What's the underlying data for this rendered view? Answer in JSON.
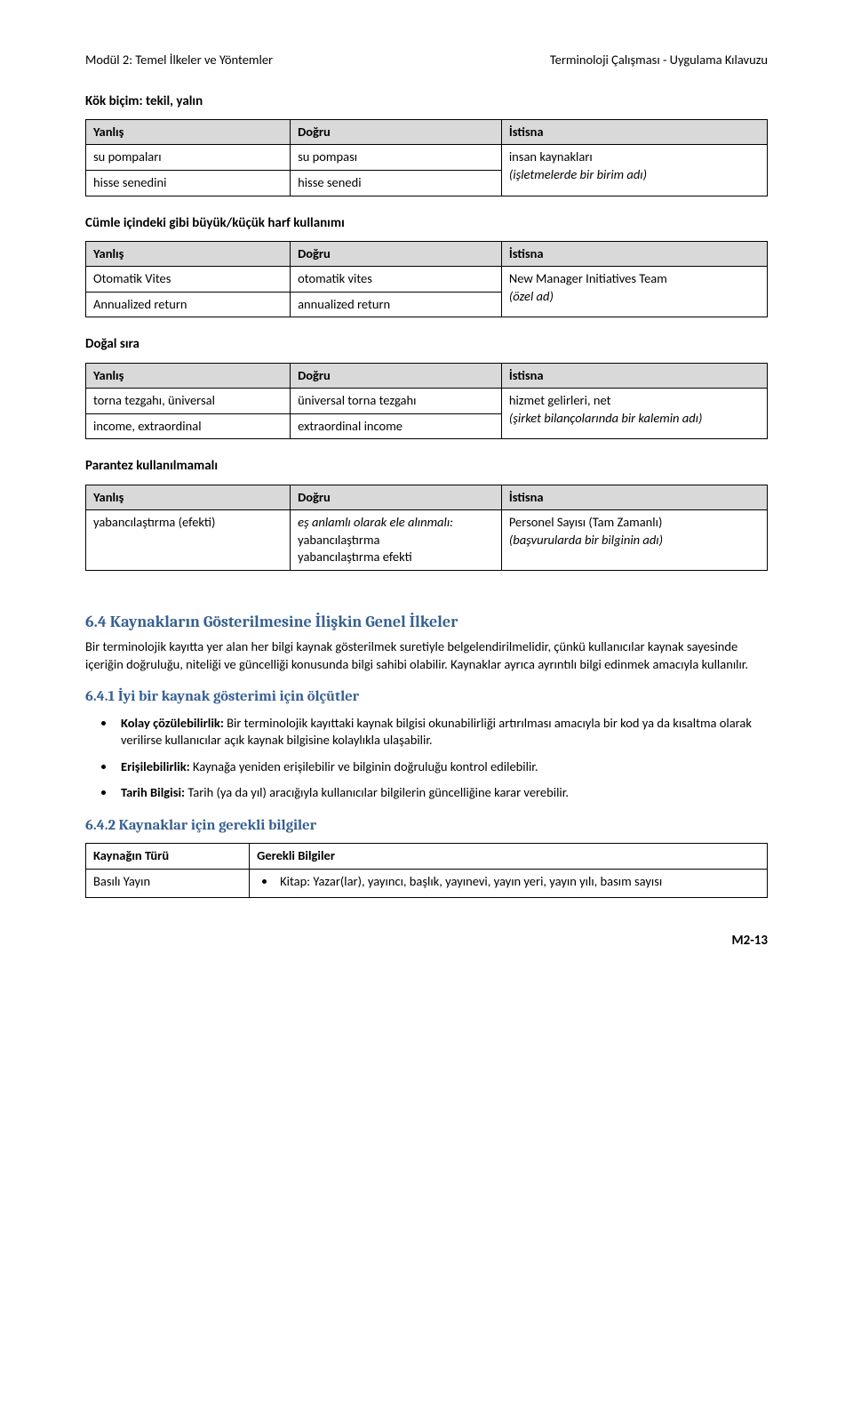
{
  "header": {
    "left": "Modül 2: Temel İlkeler ve Yöntemler",
    "right": "Terminoloji Çalışması - Uygulama Kılavuzu"
  },
  "tables": {
    "headers": {
      "wrong": "Yanlış",
      "right": "Doğru",
      "exception": "İstisna"
    },
    "t1": {
      "title": "Kök biçim: tekil, yalın",
      "r1a": "su pompaları",
      "r1b": "su pompası",
      "r2a": "hisse senedini",
      "r2b": "hisse senedi",
      "exc_l1": "insan kaynakları",
      "exc_l2": "(işletmelerde bir birim adı)"
    },
    "t2": {
      "title": "Cümle içindeki gibi büyük/küçük harf kullanımı",
      "r1a": "Otomatik Vites",
      "r1b": "otomatik vites",
      "r2a": "Annualized return",
      "r2b": "annualized return",
      "exc_l1": "New Manager Initiatives Team",
      "exc_l2": "(özel ad)"
    },
    "t3": {
      "title": "Doğal sıra",
      "r1a": "torna tezgahı, üniversal",
      "r1b": "üniversal torna tezgahı",
      "r2a": "income,  extraordinal",
      "r2b": "extraordinal income",
      "exc_l1": "hizmet gelirleri, net",
      "exc_l2": "(şirket bilançolarında bir kalemin adı)"
    },
    "t4": {
      "title": "Parantez kullanılmamalı",
      "r1a": "yabancılaştırma (efekti)",
      "r1b_l1": "eş anlamlı olarak ele alınmalı:",
      "r1b_l2": "yabancılaştırma",
      "r1b_l3": "yabancılaştırma efekti",
      "exc_l1": "Personel Sayısı (Tam Zamanlı)",
      "exc_l2": "(başvurularda bir bilginin adı)"
    }
  },
  "section64": {
    "heading": "6.4 Kaynakların Gösterilmesine İlişkin Genel İlkeler",
    "p1": "Bir terminolojik kayıtta yer alan her bilgi kaynak gösterilmek suretiyle belgelendirilmelidir, çünkü kullanıcılar kaynak sayesinde içeriğin doğruluğu, niteliği ve güncelliği konusunda bilgi sahibi olabilir. Kaynaklar ayrıca ayrıntılı bilgi edinmek amacıyla kullanılır.",
    "s641": {
      "heading": "6.4.1 İyi bir kaynak gösterimi için ölçütler",
      "b1_label": "Kolay çözülebilirlik:",
      "b1_text": " Bir terminolojik kayıttaki kaynak bilgisi okunabilirliği artırılması amacıyla bir kod ya da kısaltma olarak verilirse kullanıcılar açık kaynak bilgisine kolaylıkla ulaşabilir.",
      "b2_label": "Erişilebilirlik:",
      "b2_text": " Kaynağa yeniden erişilebilir ve bilginin doğruluğu kontrol edilebilir.",
      "b3_label": "Tarih Bilgisi:",
      "b3_text": " Tarih (ya da yıl) aracığıyla kullanıcılar bilgilerin güncelliğine karar verebilir."
    },
    "s642": {
      "heading": "6.4.2 Kaynaklar için gerekli bilgiler",
      "th1": "Kaynağın Türü",
      "th2": "Gerekli Bilgiler",
      "r1a": "Basılı Yayın",
      "r1b": "Kitap: Yazar(lar), yayıncı, başlık, yayınevi, yayın yeri,  yayın yılı, basım sayısı"
    }
  },
  "footer": "M2-13"
}
